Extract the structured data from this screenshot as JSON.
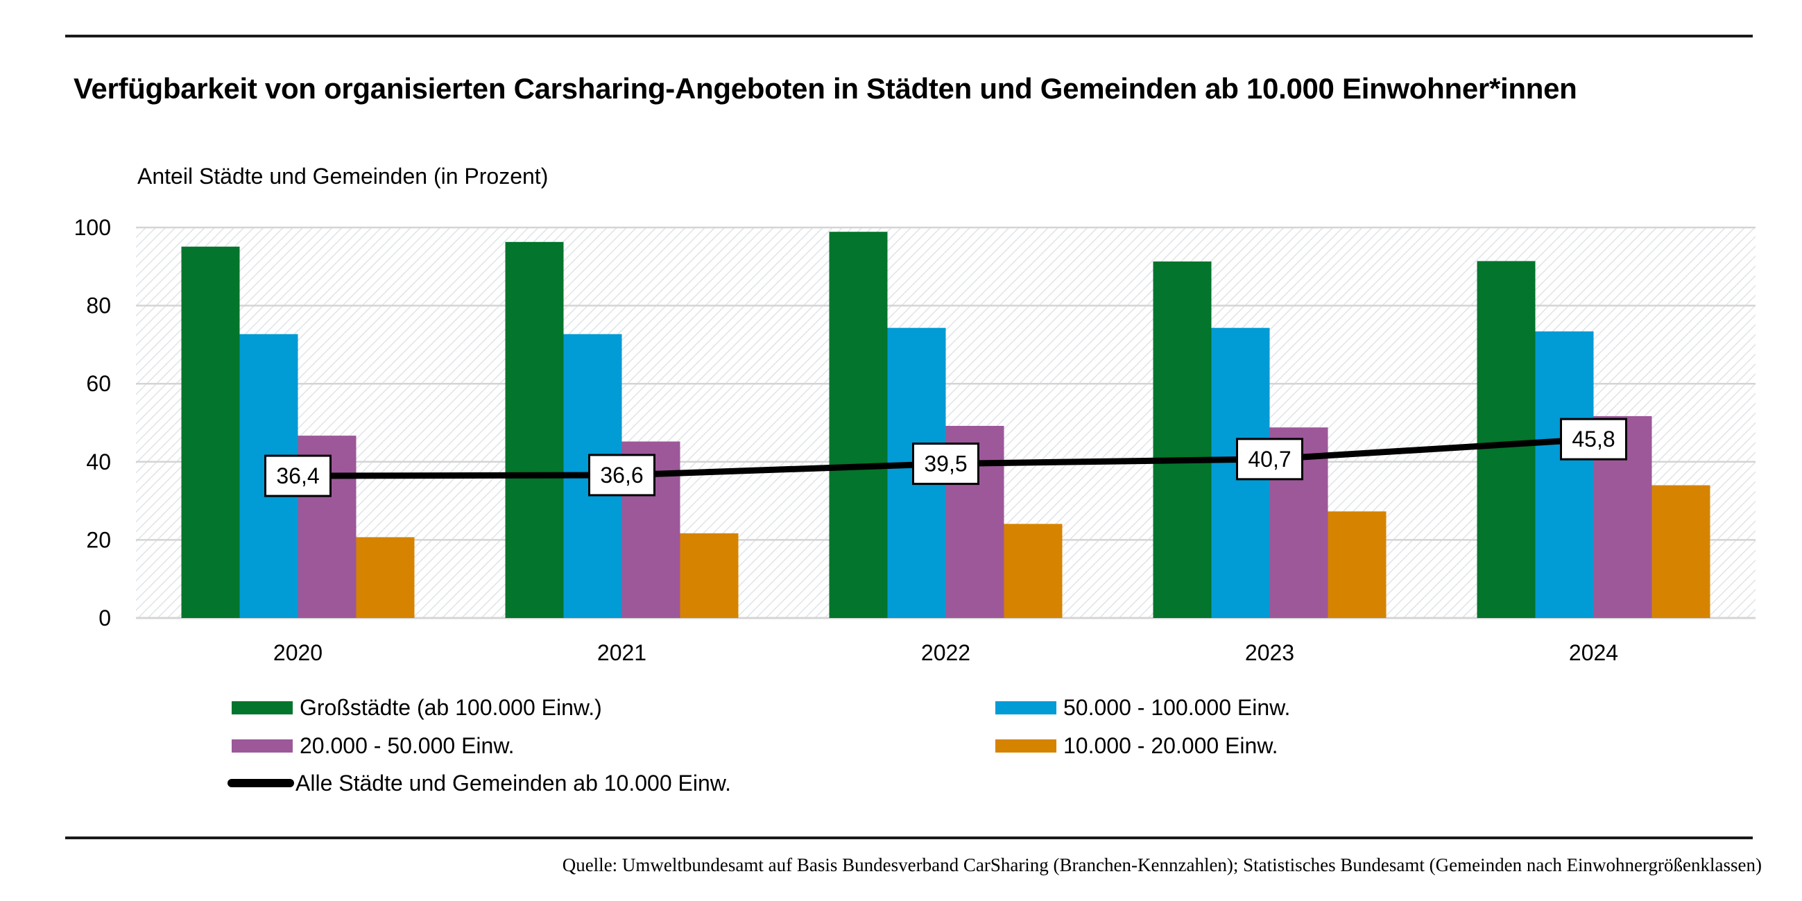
{
  "header": {
    "title": "Verfügbarkeit von organisierten Carsharing-Angeboten in Städten und Gemeinden ab 10.000 Einwohner*innen"
  },
  "footer": {
    "source": "Quelle: Umweltbundesamt auf Basis Bundesverband CarSharing (Branchen-Kennzahlen); Statistisches Bundesamt (Gemeinden nach Einwohnergrößenklassen)"
  },
  "chart_data": {
    "type": "bar",
    "title": "Verfügbarkeit von organisierten Carsharing-Angeboten in Städten und Gemeinden ab 10.000 Einwohner*innen",
    "xlabel": "",
    "ylabel": "Anteil Städte und Gemeinden (in Prozent)",
    "ylim": [
      0,
      100
    ],
    "yticks": [
      "0",
      "20",
      "40",
      "60",
      "80",
      "100"
    ],
    "yticks_values": [
      0,
      20,
      40,
      60,
      80,
      100
    ],
    "grid": true,
    "categories": [
      "2020",
      "2021",
      "2022",
      "2023",
      "2024"
    ],
    "series": [
      {
        "name": "Großstädte (ab 100.000 Einw.)",
        "type": "bar",
        "color": "#03752c",
        "values": [
          95.1,
          96.3,
          98.9,
          91.3,
          91.4
        ]
      },
      {
        "name": "50.000 - 100.000 Einw.",
        "type": "bar",
        "color": "#019bd5",
        "values": [
          72.7,
          72.7,
          74.3,
          74.3,
          73.4
        ]
      },
      {
        "name": "20.000 - 50.000 Einw.",
        "type": "bar",
        "color": "#9d5899",
        "values": [
          46.7,
          45.2,
          49.2,
          48.8,
          51.7
        ]
      },
      {
        "name": "10.000 - 20.000 Einw.",
        "type": "bar",
        "color": "#d68400",
        "values": [
          20.7,
          21.7,
          24.1,
          27.3,
          34.0
        ]
      },
      {
        "name": "Alle Städte und Gemeinden ab 10.000 Einw.",
        "type": "line",
        "color": "#000000",
        "values": [
          36.4,
          36.6,
          39.5,
          40.7,
          45.8
        ],
        "data_labels": [
          "36,4",
          "36,6",
          "39,5",
          "40,7",
          "45,8"
        ]
      }
    ],
    "legend_position": "bottom"
  }
}
